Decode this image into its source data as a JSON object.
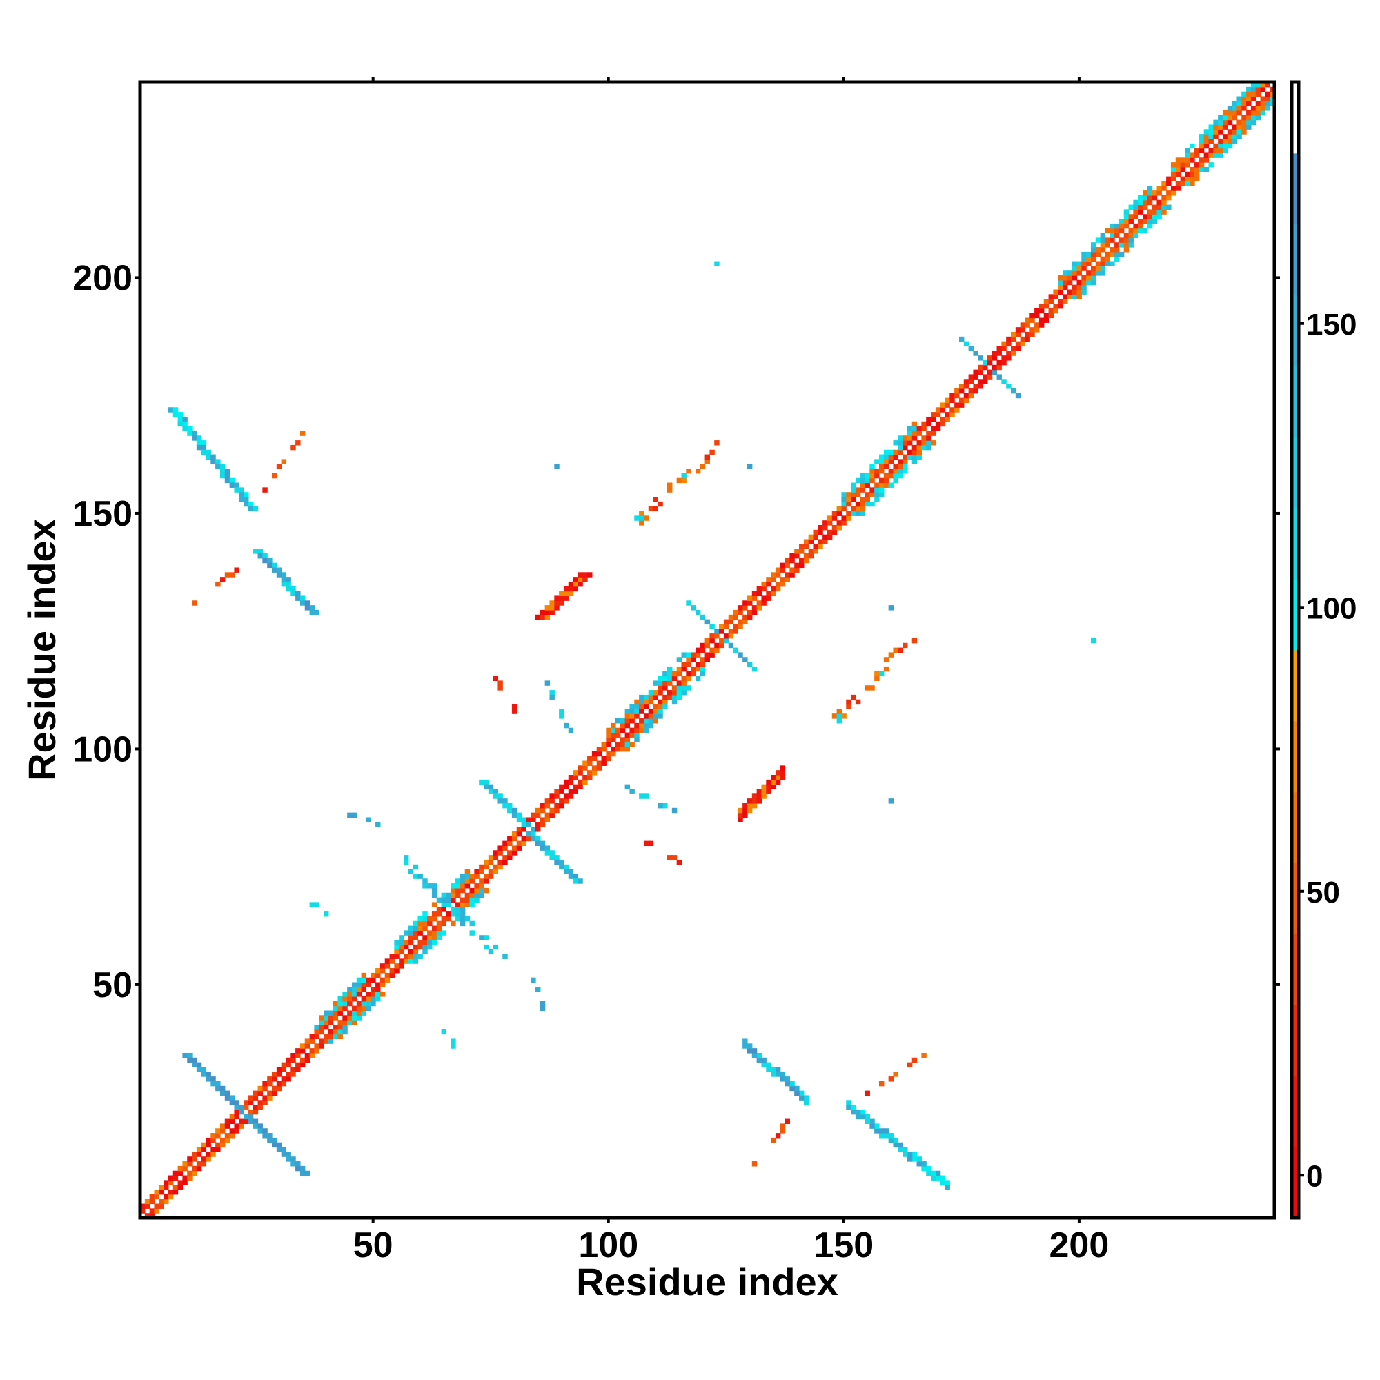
{
  "chart_data": {
    "type": "heatmap",
    "title": "",
    "xlabel": "Residue index",
    "ylabel": "Residue index",
    "xlim": [
      0.5,
      241.5
    ],
    "ylim": [
      0.5,
      241.5
    ],
    "n_residues": 241,
    "xticks": [
      50,
      100,
      150,
      200
    ],
    "yticks": [
      50,
      100,
      150,
      200
    ],
    "grid": false,
    "colorbar": {
      "range": [
        -7.5,
        192.5
      ],
      "ticks": [
        0,
        50,
        100,
        150
      ],
      "level_width": 12.5,
      "colors": [
        "#ee0a0a",
        "#f0160c",
        "#f0280c",
        "#f2420a",
        "#f45a06",
        "#f47004",
        "#f58602",
        "#f7a000",
        "#00eef0",
        "#10dce8",
        "#1ccce2",
        "#26bedc",
        "#30b0d6",
        "#3aa2d0",
        "#4690c8",
        "#ffffff"
      ]
    },
    "secondary_structure": {
      "helix": [
        [
          38,
          48
        ],
        [
          55,
          70
        ],
        [
          100,
          118
        ],
        [
          148,
          165
        ],
        [
          195,
          215
        ],
        [
          220,
          238
        ]
      ],
      "strand": [
        [
          1,
          37
        ],
        [
          71,
          99
        ],
        [
          119,
          147
        ],
        [
          166,
          194
        ],
        [
          216,
          219
        ],
        [
          239,
          241
        ]
      ]
    },
    "features": [
      {
        "from": [
          10,
          35
        ],
        "to": [
          35,
          10
        ],
        "width": 2,
        "levels": [
          13,
          14,
          12
        ]
      },
      {
        "from": [
          73,
          93
        ],
        "to": [
          93,
          72
        ],
        "width": 2,
        "levels": [
          13,
          12,
          9
        ]
      },
      {
        "from": [
          117,
          131
        ],
        "to": [
          131,
          117
        ],
        "width": 1,
        "levels": [
          13,
          10,
          9
        ]
      },
      {
        "from": [
          175,
          187
        ],
        "to": [
          187,
          175
        ],
        "width": 1,
        "levels": [
          13,
          12,
          9
        ]
      },
      {
        "from": [
          55,
          77
        ],
        "to": [
          76,
          56
        ],
        "width": 3,
        "levels": [
          9,
          10,
          11,
          12
        ],
        "sparse": 0.45
      },
      {
        "from": [
          7,
          172
        ],
        "to": [
          24,
          151
        ],
        "width": 2,
        "levels": [
          8,
          9,
          13,
          12
        ],
        "sym": true
      },
      {
        "from": [
          27,
          155
        ],
        "to": [
          35,
          167
        ],
        "width": 1,
        "levels": [
          1,
          3,
          5,
          4
        ],
        "sym": true,
        "sparse": 0.7
      },
      {
        "from": [
          25,
          142
        ],
        "to": [
          37,
          129
        ],
        "width": 2,
        "levels": [
          13,
          14,
          12,
          9
        ],
        "sym": true
      },
      {
        "from": [
          17,
          135
        ],
        "to": [
          21,
          138
        ],
        "width": 1,
        "levels": [
          1,
          4
        ],
        "sym": true
      },
      {
        "from": [
          85,
          128
        ],
        "to": [
          94,
          137
        ],
        "width": 3,
        "levels": [
          0,
          1,
          0,
          2,
          6
        ],
        "sym": true
      },
      {
        "from": [
          105,
          148
        ],
        "to": [
          123,
          165
        ],
        "width": 3,
        "levels": [
          3,
          5,
          6,
          9,
          2
        ],
        "sym": true,
        "sparse": 0.45
      },
      {
        "from": [
          33,
          89
        ],
        "to": [
          52,
          84
        ],
        "width": 1,
        "levels": [
          12,
          9,
          13
        ],
        "sym": true,
        "sparse": 0.45
      },
      {
        "from": [
          76,
          115
        ],
        "to": [
          81,
          107
        ],
        "width": 1,
        "levels": [
          1,
          3
        ],
        "sym": true,
        "sparse": 0.6
      },
      {
        "from": [
          85,
          118
        ],
        "to": [
          92,
          103
        ],
        "width": 1,
        "levels": [
          12,
          9,
          13
        ],
        "sym": true,
        "sparse": 0.55
      },
      {
        "from": [
          36,
          68
        ],
        "to": [
          40,
          65
        ],
        "width": 1,
        "levels": [
          12,
          9
        ],
        "sym": true,
        "sparse": 0.6
      },
      {
        "from": [
          123,
          203
        ],
        "to": [
          123,
          203
        ],
        "width": 1,
        "levels": [
          9
        ],
        "sym": true
      },
      {
        "from": [
          89,
          160
        ],
        "to": [
          89,
          160
        ],
        "width": 1,
        "levels": [
          13
        ],
        "sym": true
      },
      {
        "from": [
          130,
          160
        ],
        "to": [
          130,
          160
        ],
        "width": 1,
        "levels": [
          13
        ],
        "sym": true
      },
      {
        "from": [
          12,
          131
        ],
        "to": [
          12,
          131
        ],
        "width": 1,
        "levels": [
          4
        ],
        "sym": true
      }
    ]
  }
}
